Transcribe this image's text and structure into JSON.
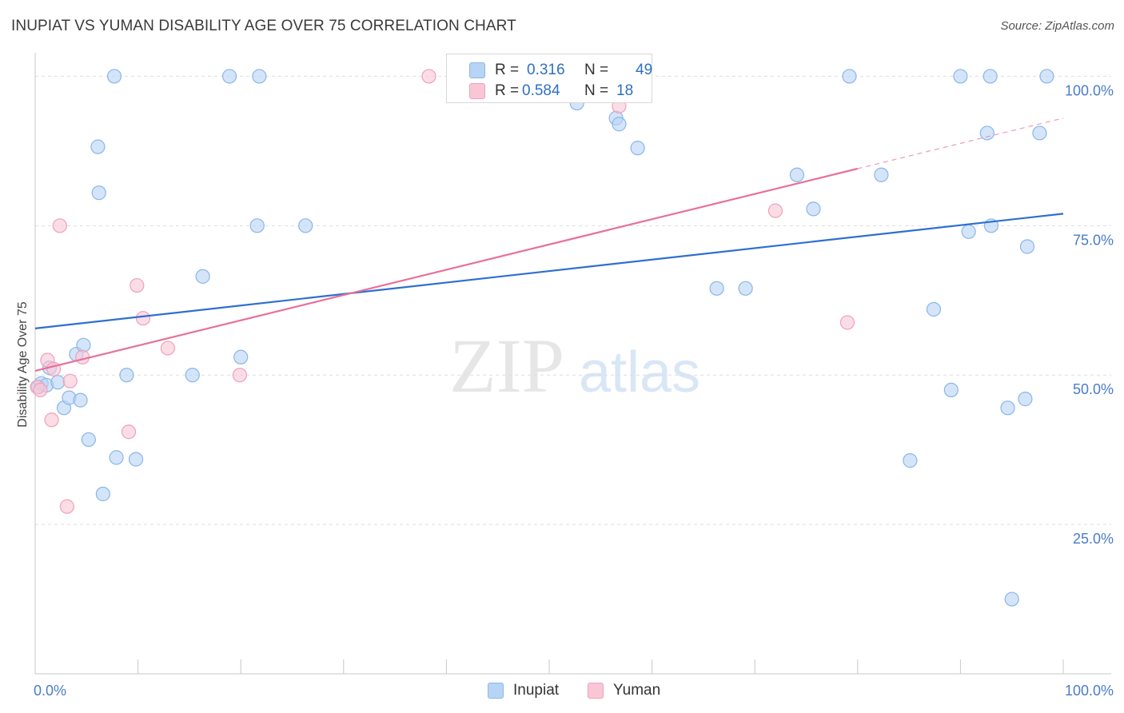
{
  "header": {
    "title": "INUPIAT VS YUMAN DISABILITY AGE OVER 75 CORRELATION CHART",
    "source": "Source: ZipAtlas.com"
  },
  "watermark": {
    "zip": "ZIP",
    "atlas": "atlas"
  },
  "legend_top": {
    "rows": [
      {
        "r_label": "R =",
        "r_value": "0.316",
        "n_label": "N =",
        "n_value": "49"
      },
      {
        "r_label": "R =",
        "r_value": "0.584",
        "n_label": "N =",
        "n_value": "18"
      }
    ]
  },
  "legend_bottom": {
    "items": [
      {
        "label": "Inupiat"
      },
      {
        "label": "Yuman"
      }
    ]
  },
  "colors": {
    "inupiat_fill": "#b8d4f5",
    "inupiat_stroke": "#8ab6e8",
    "inupiat_line": "#2f6fd0",
    "yuman_fill": "#f9c6d6",
    "yuman_stroke": "#f0a0bb",
    "yuman_line": "#e8709a",
    "tick_label": "#4a7cc9",
    "grid": "#dedede"
  },
  "chart_data": {
    "type": "scatter",
    "title": "INUPIAT VS YUMAN DISABILITY AGE OVER 75 CORRELATION CHART",
    "xlabel": "",
    "ylabel": "Disability Age Over 75",
    "xlim": [
      0,
      100
    ],
    "ylim": [
      0,
      103
    ],
    "x_tick_labels": [
      {
        "value": 0,
        "label": "0.0%"
      },
      {
        "value": 100,
        "label": "100.0%"
      }
    ],
    "x_minor_ticks": [
      10,
      20,
      30,
      40,
      50,
      60,
      70,
      80,
      90,
      100
    ],
    "y_tick_labels": [
      {
        "value": 100,
        "label": "100.0%"
      },
      {
        "value": 75,
        "label": "75.0%"
      },
      {
        "value": 50,
        "label": "50.0%"
      },
      {
        "value": 25,
        "label": "25.0%"
      }
    ],
    "grid": true,
    "legend": "top-center",
    "series": [
      {
        "name": "Inupiat",
        "R": 0.316,
        "N": 49,
        "trend": {
          "x": [
            0,
            100
          ],
          "y": [
            57.8,
            77.0
          ],
          "dashed_from": null
        },
        "points": [
          [
            0.3,
            48.0
          ],
          [
            0.6,
            48.6
          ],
          [
            1.1,
            48.3
          ],
          [
            1.4,
            51.2
          ],
          [
            2.2,
            48.8
          ],
          [
            2.8,
            44.5
          ],
          [
            3.3,
            46.2
          ],
          [
            4.0,
            53.5
          ],
          [
            4.4,
            45.8
          ],
          [
            4.7,
            55.0
          ],
          [
            5.2,
            39.2
          ],
          [
            6.1,
            88.2
          ],
          [
            6.2,
            80.5
          ],
          [
            6.6,
            30.1
          ],
          [
            7.7,
            100.0
          ],
          [
            7.9,
            36.2
          ],
          [
            8.9,
            50.0
          ],
          [
            9.8,
            35.9
          ],
          [
            15.3,
            50.0
          ],
          [
            16.3,
            66.5
          ],
          [
            18.9,
            100.0
          ],
          [
            20.0,
            53.0
          ],
          [
            21.6,
            75.0
          ],
          [
            21.8,
            100.0
          ],
          [
            26.3,
            75.0
          ],
          [
            52.7,
            95.5
          ],
          [
            56.5,
            93.0
          ],
          [
            56.8,
            92.0
          ],
          [
            58.6,
            88.0
          ],
          [
            66.3,
            64.5
          ],
          [
            69.1,
            64.5
          ],
          [
            74.1,
            83.5
          ],
          [
            75.7,
            77.8
          ],
          [
            79.2,
            100.0
          ],
          [
            82.3,
            83.5
          ],
          [
            85.1,
            35.7
          ],
          [
            87.4,
            61.0
          ],
          [
            89.1,
            47.5
          ],
          [
            90.0,
            100.0
          ],
          [
            90.8,
            74.0
          ],
          [
            92.6,
            90.5
          ],
          [
            92.9,
            100.0
          ],
          [
            93.0,
            75.0
          ],
          [
            94.6,
            44.5
          ],
          [
            95.0,
            12.5
          ],
          [
            96.3,
            46.0
          ],
          [
            96.5,
            71.5
          ],
          [
            97.7,
            90.5
          ],
          [
            98.4,
            100.0
          ]
        ]
      },
      {
        "name": "Yuman",
        "R": 0.584,
        "N": 18,
        "trend": {
          "x": [
            0,
            100
          ],
          "y": [
            50.7,
            93.0
          ],
          "dashed_from": 80
        },
        "points": [
          [
            0.2,
            48.0
          ],
          [
            0.5,
            47.5
          ],
          [
            1.2,
            52.5
          ],
          [
            1.6,
            42.5
          ],
          [
            1.8,
            51.0
          ],
          [
            2.4,
            75.0
          ],
          [
            3.1,
            28.0
          ],
          [
            3.4,
            49.0
          ],
          [
            4.6,
            53.0
          ],
          [
            9.1,
            40.5
          ],
          [
            9.9,
            65.0
          ],
          [
            10.5,
            59.5
          ],
          [
            12.9,
            54.5
          ],
          [
            19.9,
            50.0
          ],
          [
            38.3,
            100.0
          ],
          [
            56.8,
            95.0
          ],
          [
            72.0,
            77.5
          ],
          [
            79.0,
            58.8
          ]
        ]
      }
    ]
  }
}
